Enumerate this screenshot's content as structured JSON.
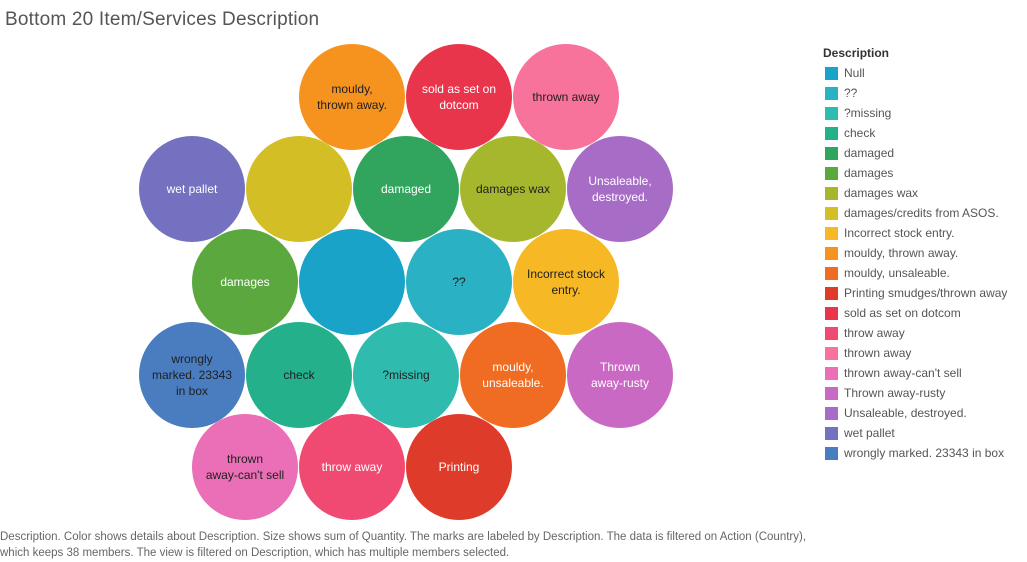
{
  "title": "Bottom 20 Item/Services Description",
  "caption": "Description.  Color shows details about Description.  Size shows sum of Quantity.  The marks are labeled by Description. The data is filtered on Action (Country), which keeps 38 members. The view is filtered on Description, which has multiple members selected.",
  "chart_data": {
    "type": "packed-bubble",
    "title": "Bottom 20 Item/Services Description",
    "legend": {
      "title": "Description",
      "placement": "right",
      "items": [
        {
          "label": "Null",
          "color": "#1aa3c9"
        },
        {
          "label": "??",
          "color": "#2ab1c3"
        },
        {
          "label": "?missing",
          "color": "#2fbcae"
        },
        {
          "label": "check",
          "color": "#24b08a"
        },
        {
          "label": "damaged",
          "color": "#31a55d"
        },
        {
          "label": "damages",
          "color": "#5aa83e"
        },
        {
          "label": "damages wax",
          "color": "#a6b72e"
        },
        {
          "label": "damages/credits from ASOS.",
          "color": "#d4be26"
        },
        {
          "label": "Incorrect stock entry.",
          "color": "#f6b825"
        },
        {
          "label": "mouldy, thrown away.",
          "color": "#f6921e"
        },
        {
          "label": "mouldy, unsaleable.",
          "color": "#ef6c22"
        },
        {
          "label": "Printing smudges/thrown away",
          "color": "#df3b2a"
        },
        {
          "label": "sold as set on dotcom",
          "color": "#e8354c"
        },
        {
          "label": "throw away",
          "color": "#f04a72"
        },
        {
          "label": "thrown away",
          "color": "#f7739c"
        },
        {
          "label": "thrown away-can't sell",
          "color": "#ea6fb6"
        },
        {
          "label": "Thrown away-rusty",
          "color": "#ca69c4"
        },
        {
          "label": "Unsaleable, destroyed.",
          "color": "#a66cc6"
        },
        {
          "label": "wet pallet",
          "color": "#7472c0"
        },
        {
          "label": "wrongly marked. 23343 in box",
          "color": "#4a7dbf"
        }
      ]
    },
    "bubbles": [
      {
        "category": "mouldy, thrown away.",
        "label": [
          "mouldy,",
          "thrown away."
        ],
        "value": 1
      },
      {
        "category": "sold as set on dotcom",
        "label": [
          "sold as set on",
          "dotcom"
        ],
        "value": 1
      },
      {
        "category": "thrown away",
        "label": [
          "thrown away"
        ],
        "value": 1
      },
      {
        "category": "wet pallet",
        "label": [
          "wet pallet"
        ],
        "value": 1
      },
      {
        "category": "damages/credits from ASOS.",
        "label": [],
        "value": 1
      },
      {
        "category": "damaged",
        "label": [
          "damaged"
        ],
        "value": 1
      },
      {
        "category": "damages wax",
        "label": [
          "damages wax"
        ],
        "value": 1
      },
      {
        "category": "Unsaleable, destroyed.",
        "label": [
          "Unsaleable,",
          "destroyed."
        ],
        "value": 1
      },
      {
        "category": "damages",
        "label": [
          "damages"
        ],
        "value": 1
      },
      {
        "category": "Null",
        "label": [],
        "value": 1
      },
      {
        "category": "??",
        "label": [
          "??"
        ],
        "value": 1
      },
      {
        "category": "Incorrect stock entry.",
        "label": [
          "Incorrect stock",
          "entry."
        ],
        "value": 1
      },
      {
        "category": "wrongly marked. 23343 in box",
        "label": [
          "wrongly",
          "marked. 23343",
          "in box"
        ],
        "value": 1
      },
      {
        "category": "check",
        "label": [
          "check"
        ],
        "value": 1
      },
      {
        "category": "?missing",
        "label": [
          "?missing"
        ],
        "value": 1
      },
      {
        "category": "mouldy, unsaleable.",
        "label": [
          "mouldy,",
          "unsaleable."
        ],
        "value": 1
      },
      {
        "category": "Thrown away-rusty",
        "label": [
          "Thrown",
          "away-rusty"
        ],
        "value": 1
      },
      {
        "category": "thrown away-can't sell",
        "label": [
          "thrown",
          "away-can't sell"
        ],
        "value": 1
      },
      {
        "category": "throw away",
        "label": [
          "throw away"
        ],
        "value": 1
      },
      {
        "category": "Printing smudges/thrown away",
        "label": [
          "Printing"
        ],
        "value": 1
      }
    ]
  }
}
